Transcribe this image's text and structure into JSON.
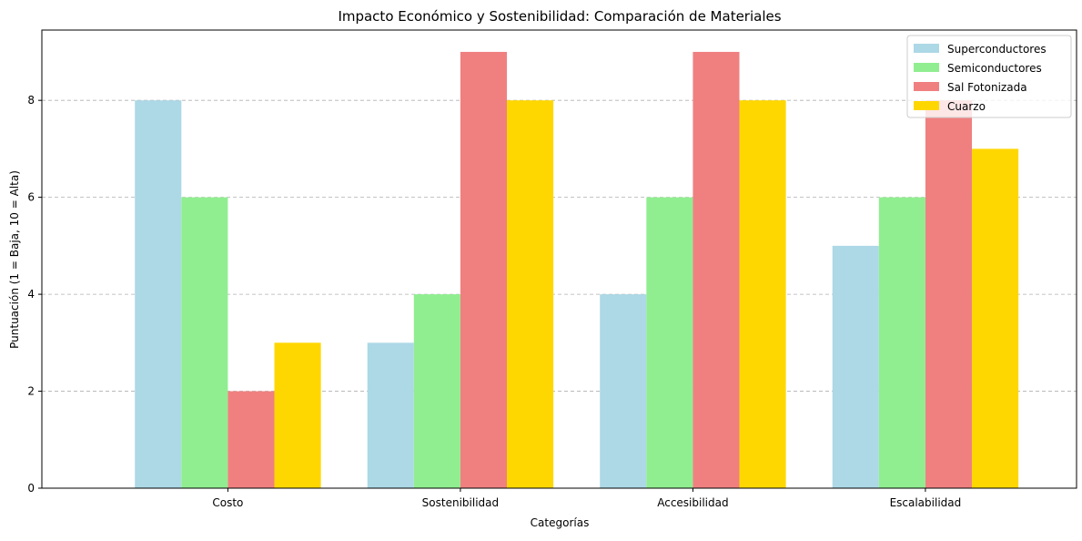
{
  "chart_data": {
    "type": "bar",
    "title": "Impacto Económico y Sostenibilidad: Comparación de Materiales",
    "xlabel": "Categorías",
    "ylabel": "Puntuación (1 = Baja, 10 = Alta)",
    "categories": [
      "Costo",
      "Sostenibilidad",
      "Accesibilidad",
      "Escalabilidad"
    ],
    "series": [
      {
        "name": "Superconductores",
        "color": "#add8e6",
        "values": [
          8,
          3,
          4,
          5
        ]
      },
      {
        "name": "Semiconductores",
        "color": "#90ee90",
        "values": [
          6,
          4,
          6,
          6
        ]
      },
      {
        "name": "Sal Fotonizada",
        "color": "#f08080",
        "values": [
          2,
          9,
          9,
          8
        ]
      },
      {
        "name": "Cuarzo",
        "color": "#ffd700",
        "values": [
          3,
          8,
          8,
          7
        ]
      }
    ],
    "ylim": [
      0,
      9.45
    ],
    "yticks": [
      0,
      2,
      4,
      6,
      8
    ],
    "grid": "y-dashed",
    "legend_position": "top-right"
  }
}
